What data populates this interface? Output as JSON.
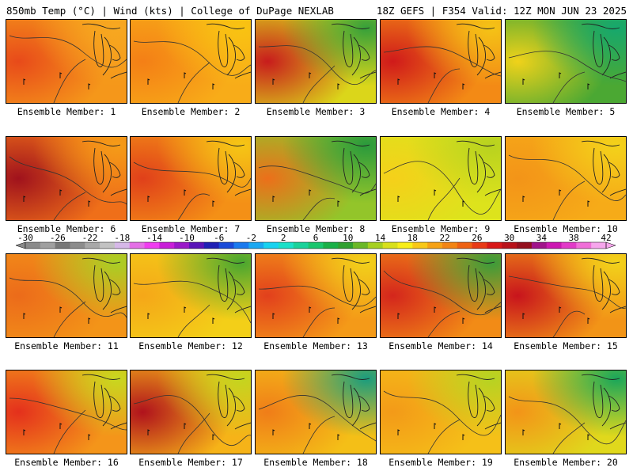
{
  "header": {
    "left": "850mb Temp (°C) | Wind (kts) | College of DuPage NEXLAB",
    "right": "18Z GEFS | F354 Valid: 12Z MON JUN 23 2025"
  },
  "panels": [
    {
      "label": "Ensemble Member: 1",
      "base": "#f5971a",
      "warm": "#e84a1a",
      "cool": "#f7a820"
    },
    {
      "label": "Ensemble Member: 2",
      "base": "#f8ac18",
      "warm": "#f47f16",
      "cool": "#f9c312"
    },
    {
      "label": "Ensemble Member: 3",
      "base": "#dbd61a",
      "warm": "#c81c1c",
      "cool": "#36a03a"
    },
    {
      "label": "Ensemble Member: 4",
      "base": "#f38a15",
      "warm": "#d01a1a",
      "cool": "#f5c316"
    },
    {
      "label": "Ensemble Member: 5",
      "base": "#4ba833",
      "warm": "#f0d21a",
      "cool": "#16a86d"
    },
    {
      "label": "Ensemble Member: 6",
      "base": "#ef6f19",
      "warm": "#a0121c",
      "cool": "#f59c18"
    },
    {
      "label": "Ensemble Member: 7",
      "base": "#f49016",
      "warm": "#e0401a",
      "cool": "#f5c615"
    },
    {
      "label": "Ensemble Member: 8",
      "base": "#93c52a",
      "warm": "#ec6f1a",
      "cool": "#2a9a3c"
    },
    {
      "label": "Ensemble Member: 9",
      "base": "#dde31c",
      "warm": "#f5d01a",
      "cool": "#b8d21f"
    },
    {
      "label": "Ensemble Member: 10",
      "base": "#f6ab18",
      "warm": "#f39418",
      "cool": "#f3d21a"
    },
    {
      "label": "Ensemble Member: 11",
      "base": "#f39418",
      "warm": "#ec6b1a",
      "cool": "#a8cf25"
    },
    {
      "label": "Ensemble Member: 12",
      "base": "#f3cf18",
      "warm": "#f5a718",
      "cool": "#48a630"
    },
    {
      "label": "Ensemble Member: 13",
      "base": "#f49a18",
      "warm": "#e2401c",
      "cool": "#f2d01a"
    },
    {
      "label": "Ensemble Member: 14",
      "base": "#f28b16",
      "warm": "#d4261c",
      "cool": "#3a9c3a"
    },
    {
      "label": "Ensemble Member: 15",
      "base": "#f29417",
      "warm": "#c8141c",
      "cool": "#f2d21a"
    },
    {
      "label": "Ensemble Member: 16",
      "base": "#f4951a",
      "warm": "#e4301c",
      "cool": "#c8d81f"
    },
    {
      "label": "Ensemble Member: 17",
      "base": "#f6b318",
      "warm": "#b0121c",
      "cool": "#c4d51f"
    },
    {
      "label": "Ensemble Member: 18",
      "base": "#f4bf17",
      "warm": "#f07d18",
      "cool": "#1a9c7e"
    },
    {
      "label": "Ensemble Member: 19",
      "base": "#f5c018",
      "warm": "#f39a18",
      "cool": "#b6d322"
    },
    {
      "label": "Ensemble Member: 20",
      "base": "#e0d81c",
      "warm": "#f39418",
      "cool": "#1aa65a"
    }
  ],
  "colorbar": {
    "ticks": [
      "-30",
      "-26",
      "-22",
      "-18",
      "-14",
      "-10",
      "-6",
      "-2",
      "2",
      "6",
      "10",
      "14",
      "18",
      "22",
      "26",
      "30",
      "34",
      "38",
      "42"
    ],
    "colors": [
      "#8a8a8a",
      "#a0a0a0",
      "#777777",
      "#8c8c8c",
      "#a8a8a8",
      "#c2c2c2",
      "#d6b8e8",
      "#e470e6",
      "#f03cf0",
      "#c81ed8",
      "#9a18c8",
      "#5a14b8",
      "#2020b4",
      "#1a4ad8",
      "#1a7aee",
      "#1aa8f2",
      "#18d2f0",
      "#1ae0c8",
      "#1ad29a",
      "#1ac66e",
      "#1ab048",
      "#30a030",
      "#6ab828",
      "#a6d020",
      "#d8e01c",
      "#f8ee1a",
      "#f8c818",
      "#f6a216",
      "#f28414",
      "#ee6214",
      "#e83a16",
      "#d81818",
      "#b8121a",
      "#94101e",
      "#a0148a",
      "#cc18b2",
      "#e23ac8",
      "#f070d8",
      "#f6a6ec"
    ]
  }
}
